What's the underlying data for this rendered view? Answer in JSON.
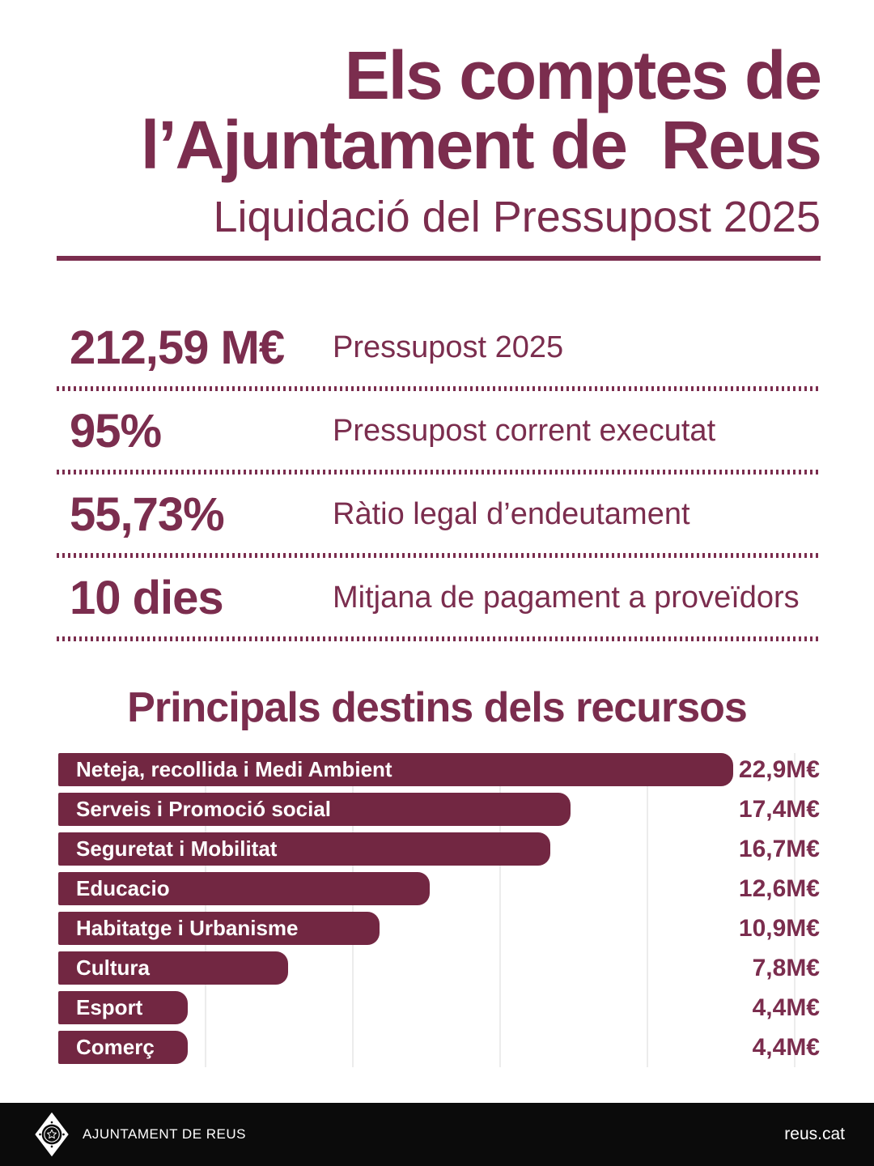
{
  "header": {
    "title_line1": "Els comptes de",
    "title_line2": "l’Ajuntament de  Reus",
    "subtitle": "Liquidació del Pressupost 2025"
  },
  "stats": [
    {
      "value": "212,59 M€",
      "label": "Pressupost 2025"
    },
    {
      "value": "95%",
      "label": "Pressupost corrent executat"
    },
    {
      "value": "55,73%",
      "label": "Ràtio legal d’endeutament"
    },
    {
      "value": "10 dies",
      "label": "Mitjana de pagament a proveïdors"
    }
  ],
  "chart_data": {
    "type": "bar",
    "orientation": "horizontal",
    "title": "Principals destins dels recursos",
    "categories": [
      "Neteja, recollida i Medi Ambient",
      "Serveis i Promoció social",
      "Seguretat i Mobilitat",
      "Educacio",
      "Habitatge i Urbanisme",
      "Cultura",
      "Esport",
      "Comerç"
    ],
    "values": [
      22.9,
      17.4,
      16.7,
      12.6,
      10.9,
      7.8,
      4.4,
      4.4
    ],
    "value_labels": [
      "22,9M€",
      "17,4M€",
      "16,7M€",
      "12,6M€",
      "10,9M€",
      "7,8M€",
      "4,4M€",
      "4,4M€"
    ],
    "unit": "M€",
    "axis_max": 25,
    "gridline_step": 5,
    "grid": true,
    "legend": false
  },
  "footer": {
    "org": "AJUNTAMENT DE REUS",
    "site": "reus.cat"
  },
  "colors": {
    "accent": "#7b2d4e",
    "bar": "#722742",
    "gridline": "#ececec",
    "footer_bg": "#0b0b0b"
  }
}
